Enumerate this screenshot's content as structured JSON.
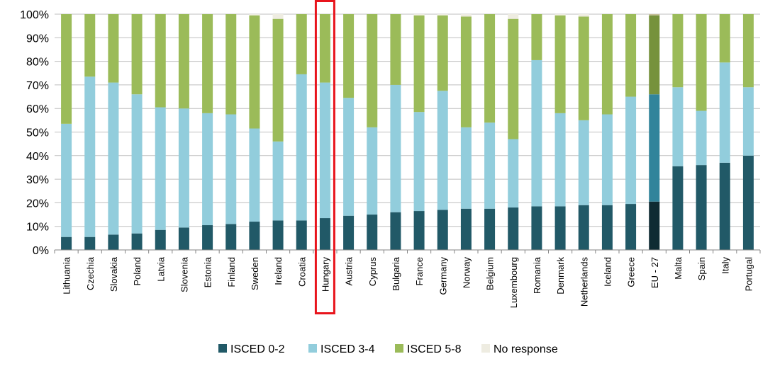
{
  "chart_data": {
    "type": "bar",
    "stacked": true,
    "categories": [
      "Lithuania",
      "Czechia",
      "Slovakia",
      "Poland",
      "Latvia",
      "Slovenia",
      "Estonia",
      "Finland",
      "Sweden",
      "Ireland",
      "Croatia",
      "Hungary",
      "Austria",
      "Cyprus",
      "Bulgaria",
      "France",
      "Germany",
      "Norway",
      "Belgium",
      "Luxembourg",
      "Romania",
      "Denmark",
      "Netherlands",
      "Iceland",
      "Greece",
      "EU - 27",
      "Malta",
      "Spain",
      "Italy",
      "Portugal"
    ],
    "series": [
      {
        "name": "ISCED 0-2",
        "color": "#215967",
        "values": [
          5.5,
          5.5,
          6.5,
          7,
          8.5,
          9.5,
          10.5,
          11,
          12,
          12.5,
          12.5,
          13.5,
          14.5,
          15,
          16,
          16.5,
          17,
          17.5,
          17.5,
          18,
          18.5,
          18.5,
          19,
          19,
          19.5,
          20.5,
          35.5,
          36,
          37,
          40
        ]
      },
      {
        "name": "ISCED 3-4",
        "color": "#92CDDC",
        "values": [
          48,
          68,
          64.5,
          59,
          52,
          50.5,
          47.5,
          46.5,
          39.5,
          33.5,
          62,
          57.5,
          50,
          37,
          54,
          42,
          50.5,
          34.5,
          36.5,
          29,
          62,
          39.5,
          36,
          38.5,
          45.5,
          45.5,
          33.5,
          23,
          42.5,
          29
        ]
      },
      {
        "name": "ISCED 5-8",
        "color": "#9BBB59",
        "values": [
          46.5,
          26.5,
          29,
          34,
          39.5,
          40,
          42,
          42.5,
          48,
          52,
          25.5,
          29,
          35.5,
          48,
          30,
          41,
          32,
          47,
          46,
          51,
          19.5,
          41.5,
          44,
          42.5,
          35,
          33.5,
          31,
          41,
          20.5,
          31
        ]
      },
      {
        "name": "No response",
        "color": "#EEECE1",
        "values": [
          0,
          0,
          0,
          0,
          0,
          0,
          0,
          0,
          0.5,
          2,
          0,
          0,
          0,
          0,
          0,
          0.5,
          0.5,
          1,
          0,
          2,
          0,
          0.5,
          1,
          0,
          0,
          0.5,
          0,
          0,
          0,
          0
        ]
      }
    ],
    "highlight_colors": {
      "EU - 27": [
        "#0F2B33",
        "#31849B",
        "#76923C",
        "#C4BD97"
      ]
    },
    "highlighted_category": "Hungary",
    "highlight_box_color": "#E8141C",
    "ylim": [
      0,
      100
    ],
    "y_ticks": [
      "0%",
      "10%",
      "20%",
      "30%",
      "40%",
      "50%",
      "60%",
      "70%",
      "80%",
      "90%",
      "100%"
    ],
    "grid": true,
    "legend_position": "bottom"
  }
}
